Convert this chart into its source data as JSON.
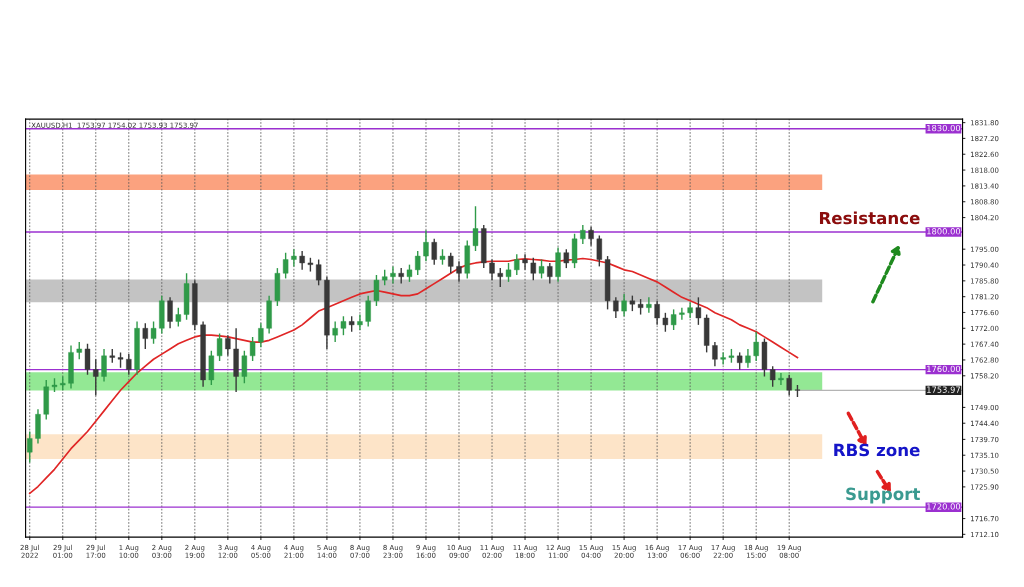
{
  "chart_data": {
    "type": "candlestick",
    "annotations": [
      "XAUUSD,H1  1753.97 1754.02 1753.93 1753.97",
      "Resistance",
      "RBS zone",
      "Support"
    ],
    "categories": [
      "28 Jul 2022",
      null,
      null,
      null,
      "29 Jul 01:00",
      null,
      null,
      null,
      "29 Jul 17:00",
      null,
      null,
      null,
      "1 Aug 10:00",
      null,
      null,
      null,
      "2 Aug 03:00",
      null,
      null,
      null,
      "2 Aug 19:00",
      null,
      null,
      null,
      "3 Aug 12:00",
      null,
      null,
      null,
      "4 Aug 05:00",
      null,
      null,
      null,
      "4 Aug 21:00",
      null,
      null,
      null,
      "5 Aug 14:00",
      null,
      null,
      null,
      "8 Aug 07:00",
      null,
      null,
      null,
      "8 Aug 23:00",
      null,
      null,
      null,
      "9 Aug 16:00",
      null,
      null,
      null,
      "10 Aug 09:00",
      null,
      null,
      null,
      "11 Aug 02:00",
      null,
      null,
      null,
      "11 Aug 18:00",
      null,
      null,
      null,
      "12 Aug 11:00",
      null,
      null,
      null,
      "15 Aug 04:00",
      null,
      null,
      null,
      "15 Aug 20:00",
      null,
      null,
      null,
      "16 Aug 13:00",
      null,
      null,
      null,
      "17 Aug 06:00",
      null,
      null,
      null,
      "17 Aug 22:00",
      null,
      null,
      null,
      "18 Aug 15:00",
      null,
      null,
      null,
      "19 Aug 08:00",
      null
    ],
    "series": [
      {
        "colors": [
          "#2f9a48",
          "#2f9a48",
          "#2f9a48",
          "#2f9a48",
          "#2f9a48",
          "#2f9a48",
          "#2f9a48",
          "#383838",
          "#383838",
          "#2f9a48",
          "#383838",
          "#383838",
          "#383838",
          "#2f9a48",
          "#383838",
          "#2f9a48",
          "#2f9a48",
          "#383838",
          "#2f9a48",
          "#2f9a48",
          "#383838",
          "#383838",
          "#2f9a48",
          "#2f9a48",
          "#383838",
          "#383838",
          "#2f9a48",
          "#2f9a48",
          "#2f9a48",
          "#2f9a48",
          "#2f9a48",
          "#2f9a48",
          "#2f9a48",
          "#383838",
          "#383838",
          "#383838",
          "#383838",
          "#2f9a48",
          "#2f9a48",
          "#383838",
          "#2f9a48",
          "#2f9a48",
          "#2f9a48",
          "#2f9a48",
          "#2f9a48",
          "#383838",
          "#2f9a48",
          "#2f9a48",
          "#2f9a48",
          "#383838",
          "#2f9a48",
          "#383838",
          "#383838",
          "#2f9a48",
          "#2f9a48",
          "#383838",
          "#383838",
          "#383838",
          "#2f9a48",
          "#2f9a48",
          "#383838",
          "#383838",
          "#2f9a48",
          "#383838",
          "#2f9a48",
          "#383838",
          "#2f9a48",
          "#2f9a48",
          "#383838",
          "#383838",
          "#383838",
          "#383838",
          "#2f9a48",
          "#383838",
          "#383838",
          "#2f9a48",
          "#383838",
          "#383838",
          "#2f9a48",
          "#2f9a48",
          "#2f9a48",
          "#383838",
          "#383838",
          "#383838",
          "#2f9a48",
          "#2f9a48",
          "#383838",
          "#2f9a48",
          "#2f9a48",
          "#383838",
          "#383838",
          "#2f9a48",
          "#383838",
          "#383838"
        ],
        "ohlc": [
          [
            1736,
            1742,
            1733,
            1740
          ],
          [
            1740,
            1748.5,
            1738.5,
            1747
          ],
          [
            1747,
            1757,
            1745.5,
            1755
          ],
          [
            1755,
            1757.5,
            1753.5,
            1755.5
          ],
          [
            1755.5,
            1758,
            1754,
            1756
          ],
          [
            1756,
            1767,
            1754.5,
            1765
          ],
          [
            1765,
            1768,
            1763,
            1766
          ],
          [
            1766,
            1767.5,
            1758.5,
            1760
          ],
          [
            1760,
            1763,
            1752.5,
            1758
          ],
          [
            1758,
            1766,
            1756.5,
            1764
          ],
          [
            1764,
            1766,
            1762,
            1763.5
          ],
          [
            1763.5,
            1765,
            1760.5,
            1763
          ],
          [
            1763,
            1764.5,
            1758.5,
            1760
          ],
          [
            1760,
            1774,
            1758.5,
            1772
          ],
          [
            1772,
            1773.5,
            1766,
            1769
          ],
          [
            1769,
            1774,
            1767.5,
            1772
          ],
          [
            1772,
            1781.5,
            1770.5,
            1780
          ],
          [
            1780,
            1781,
            1772,
            1774
          ],
          [
            1774,
            1778,
            1772.5,
            1776
          ],
          [
            1776,
            1788,
            1774.5,
            1785
          ],
          [
            1785,
            1786,
            1771.5,
            1773
          ],
          [
            1773,
            1774,
            1755,
            1757
          ],
          [
            1757,
            1765.5,
            1755.5,
            1764
          ],
          [
            1764,
            1770.5,
            1762.5,
            1769
          ],
          [
            1769,
            1770,
            1764,
            1766
          ],
          [
            1766,
            1772,
            1753.5,
            1758
          ],
          [
            1758,
            1765.5,
            1756,
            1764
          ],
          [
            1764,
            1769.5,
            1762.5,
            1768
          ],
          [
            1768,
            1773.5,
            1766.5,
            1772
          ],
          [
            1772,
            1781.5,
            1770.5,
            1780
          ],
          [
            1780,
            1789.5,
            1778.5,
            1788
          ],
          [
            1788,
            1794,
            1786.5,
            1792
          ],
          [
            1792,
            1795,
            1790,
            1793
          ],
          [
            1793,
            1794.5,
            1789,
            1791
          ],
          [
            1791,
            1792.5,
            1788.5,
            1790.5
          ],
          [
            1790.5,
            1792,
            1784.5,
            1786
          ],
          [
            1786,
            1787,
            1766,
            1770
          ],
          [
            1770,
            1774,
            1768,
            1772
          ],
          [
            1772,
            1775.5,
            1770,
            1774
          ],
          [
            1774,
            1775.5,
            1771,
            1773
          ],
          [
            1773,
            1776,
            1771.5,
            1774
          ],
          [
            1774,
            1781.5,
            1772.5,
            1780
          ],
          [
            1780,
            1787.5,
            1778.5,
            1786
          ],
          [
            1786,
            1789,
            1784.5,
            1787
          ],
          [
            1787,
            1790,
            1785,
            1788
          ],
          [
            1788,
            1789.5,
            1785,
            1787
          ],
          [
            1787,
            1790.5,
            1785.5,
            1789
          ],
          [
            1789,
            1794.5,
            1787.5,
            1793
          ],
          [
            1793,
            1800.5,
            1791.5,
            1797
          ],
          [
            1797,
            1798,
            1790.5,
            1792
          ],
          [
            1792,
            1795,
            1790.5,
            1793
          ],
          [
            1793,
            1794,
            1788,
            1790
          ],
          [
            1790,
            1791.5,
            1785.5,
            1788
          ],
          [
            1788,
            1797.5,
            1786.5,
            1796
          ],
          [
            1796,
            1807.5,
            1794.5,
            1801
          ],
          [
            1801,
            1802,
            1789.5,
            1791
          ],
          [
            1791,
            1792,
            1786,
            1788
          ],
          [
            1788,
            1789.5,
            1784,
            1787
          ],
          [
            1787,
            1791,
            1785.5,
            1789
          ],
          [
            1789,
            1793.5,
            1787.5,
            1792
          ],
          [
            1792,
            1793.5,
            1789,
            1791
          ],
          [
            1791,
            1792.5,
            1786,
            1788
          ],
          [
            1788,
            1792,
            1786.5,
            1790
          ],
          [
            1790,
            1791,
            1785,
            1787
          ],
          [
            1787,
            1795.5,
            1785.5,
            1794
          ],
          [
            1794,
            1795,
            1789.5,
            1791
          ],
          [
            1791,
            1799.5,
            1789.5,
            1798
          ],
          [
            1798,
            1802,
            1796.5,
            1800.5
          ],
          [
            1800.5,
            1801.5,
            1796,
            1798
          ],
          [
            1798,
            1799,
            1790,
            1792
          ],
          [
            1792,
            1793,
            1777.5,
            1780
          ],
          [
            1780,
            1781,
            1775,
            1777
          ],
          [
            1777,
            1782,
            1775.5,
            1780
          ],
          [
            1780,
            1781.5,
            1777,
            1779
          ],
          [
            1779,
            1780.5,
            1776,
            1778
          ],
          [
            1778,
            1781,
            1776.5,
            1779
          ],
          [
            1779,
            1780,
            1773,
            1775
          ],
          [
            1775,
            1776.5,
            1771,
            1773
          ],
          [
            1773,
            1777.5,
            1771.5,
            1776
          ],
          [
            1776,
            1778,
            1774.5,
            1776.5
          ],
          [
            1776.5,
            1779.5,
            1775,
            1778
          ],
          [
            1778,
            1781,
            1773,
            1775
          ],
          [
            1775,
            1776,
            1765,
            1767
          ],
          [
            1767,
            1768,
            1761,
            1763
          ],
          [
            1763,
            1765,
            1761.5,
            1763.5
          ],
          [
            1763.5,
            1766,
            1762,
            1764
          ],
          [
            1764,
            1765,
            1760,
            1762
          ],
          [
            1762,
            1766,
            1760.5,
            1764
          ],
          [
            1764,
            1771,
            1762.5,
            1768
          ],
          [
            1768,
            1769,
            1758,
            1760
          ],
          [
            1760,
            1761,
            1755,
            1757
          ],
          [
            1757,
            1759,
            1755.5,
            1757.5
          ],
          [
            1757.5,
            1758.5,
            1752.5,
            1754
          ],
          [
            1754,
            1755.5,
            1752,
            1753.97
          ]
        ]
      },
      {
        "type": "line",
        "color": "#e02626",
        "values": [
          1724,
          1726,
          1728.5,
          1731,
          1734,
          1737,
          1739.5,
          1742,
          1745,
          1748,
          1751,
          1754,
          1756.5,
          1759,
          1761,
          1763,
          1764.5,
          1766,
          1767.5,
          1768.5,
          1769.5,
          1770,
          1770,
          1769.8,
          1769.5,
          1769,
          1768.5,
          1768,
          1768,
          1768.5,
          1769.5,
          1770.5,
          1771.5,
          1773,
          1775,
          1777,
          1778,
          1779,
          1780,
          1781,
          1782,
          1782.5,
          1783,
          1782.5,
          1782,
          1781.5,
          1781.5,
          1782,
          1783.5,
          1785,
          1786.5,
          1788,
          1789.5,
          1790.5,
          1791,
          1791.3,
          1791.5,
          1791.5,
          1791.5,
          1792,
          1792.2,
          1792,
          1791.8,
          1791.5,
          1791.5,
          1791.8,
          1792,
          1792.3,
          1792,
          1791.5,
          1791,
          1790,
          1789,
          1788.5,
          1787.5,
          1786.5,
          1785.5,
          1784,
          1782.5,
          1781,
          1780,
          1779,
          1778,
          1776.5,
          1775.5,
          1774.5,
          1773,
          1772,
          1771,
          1769.5,
          1768,
          1766.5,
          1765,
          1763.5
        ]
      }
    ],
    "ylim": [
      1711.3,
      1832.8
    ],
    "yticks": [
      {
        "value": 1831.8,
        "label": "1831.80"
      },
      {
        "value": 1827.2,
        "label": "1827.20"
      },
      {
        "value": 1822.6,
        "label": "1822.60"
      },
      {
        "value": 1818.0,
        "label": "1818.00"
      },
      {
        "value": 1813.4,
        "label": "1813.40"
      },
      {
        "value": 1808.8,
        "label": "1808.80"
      },
      {
        "value": 1804.2,
        "label": "1804.20"
      },
      {
        "value": 1795.0,
        "label": "1795.00"
      },
      {
        "value": 1790.4,
        "label": "1790.40"
      },
      {
        "value": 1785.8,
        "label": "1785.80"
      },
      {
        "value": 1781.2,
        "label": "1781.20"
      },
      {
        "value": 1776.6,
        "label": "1776.60"
      },
      {
        "value": 1772.0,
        "label": "1772.00"
      },
      {
        "value": 1767.4,
        "label": "1767.40"
      },
      {
        "value": 1762.8,
        "label": "1762.80"
      },
      {
        "value": 1758.2,
        "label": "1758.20"
      },
      {
        "value": 1749.0,
        "label": "1749.00"
      },
      {
        "value": 1744.4,
        "label": "1744.40"
      },
      {
        "value": 1739.7,
        "label": "1739.70"
      },
      {
        "value": 1735.1,
        "label": "1735.10"
      },
      {
        "value": 1730.5,
        "label": "1730.50"
      },
      {
        "value": 1725.9,
        "label": "1725.90"
      },
      {
        "value": 1716.7,
        "label": "1716.70"
      },
      {
        "value": 1712.1,
        "label": "1712.10"
      }
    ],
    "ref_lines": [
      {
        "axis": "y",
        "value": 1830,
        "label": "1830.00",
        "color": "#9b30d0"
      },
      {
        "axis": "y",
        "value": 1800,
        "label": "1800.00",
        "color": "#9b30d0"
      },
      {
        "axis": "y",
        "value": 1760,
        "label": "1760.00",
        "color": "#9b30d0"
      },
      {
        "axis": "y",
        "value": 1720,
        "label": "1720.00",
        "color": "#9b30d0"
      },
      {
        "axis": "y",
        "value": 1753.97,
        "label": "1753.97",
        "color": "#b4b4b4"
      }
    ],
    "bands": [
      {
        "axis": "y",
        "from": 1812.2,
        "to": 1816.7,
        "color": "#fba27f"
      },
      {
        "axis": "y",
        "from": 1779.6,
        "to": 1786.2,
        "color": "#c3c3c3"
      },
      {
        "axis": "y",
        "from": 1753.9,
        "to": 1759.2,
        "color": "#93e894"
      },
      {
        "axis": "y",
        "from": 1734.0,
        "to": 1741.2,
        "color": "#fde4c8"
      }
    ],
    "grid": "x"
  }
}
